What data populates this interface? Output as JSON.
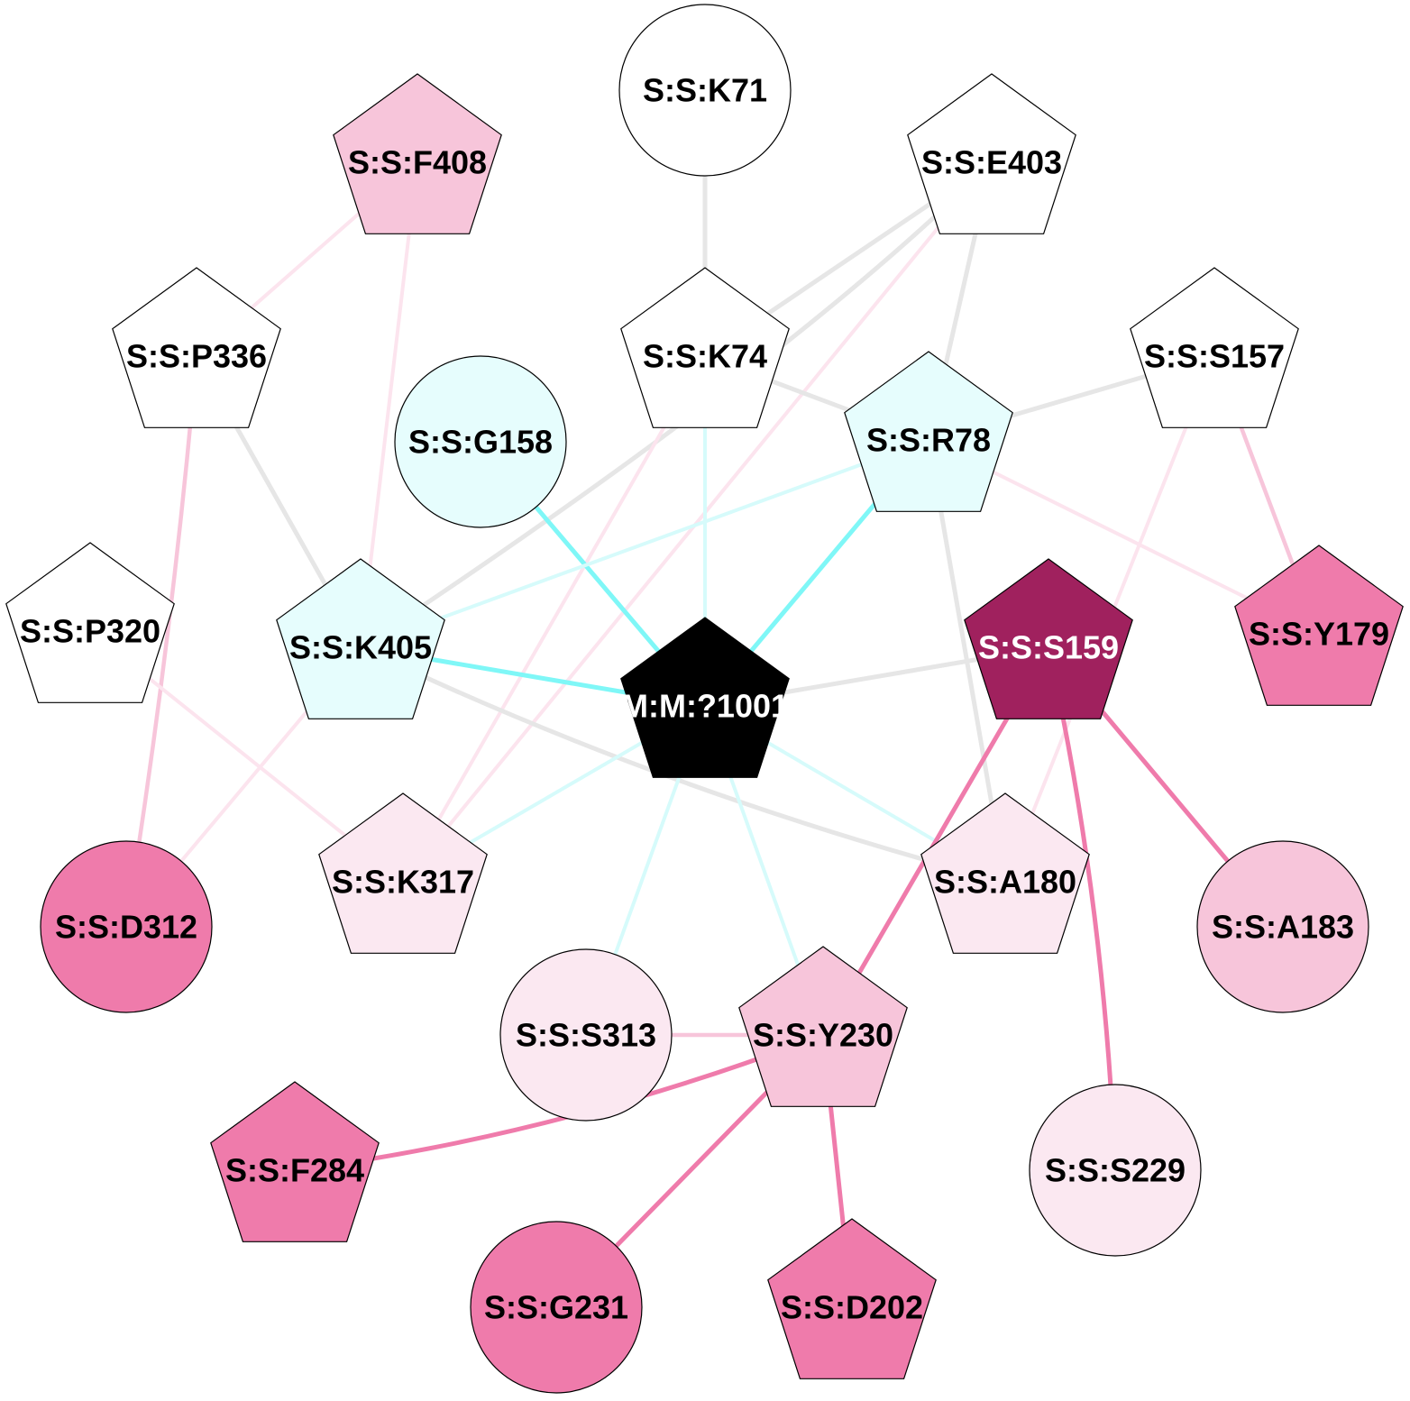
{
  "palette": {
    "gray": "#e6e6e6",
    "cyan": "#7ff7f7",
    "cyan_light": "#d6fbfb",
    "pink_faint": "#fce4ee",
    "pink_light": "#f7c5da",
    "pink_mid": "#ef7bab"
  },
  "nodes": [
    {
      "id": "K71",
      "label": "S:S:K71",
      "shape": "circle",
      "fill": "#ffffff",
      "text_color": "#000000"
    },
    {
      "id": "F408",
      "label": "S:S:F408",
      "shape": "pentagon",
      "fill": "#f7c5da",
      "text_color": "#000000"
    },
    {
      "id": "E403",
      "label": "S:S:E403",
      "shape": "pentagon",
      "fill": "#ffffff",
      "text_color": "#000000"
    },
    {
      "id": "P336",
      "label": "S:S:P336",
      "shape": "pentagon",
      "fill": "#ffffff",
      "text_color": "#000000"
    },
    {
      "id": "K74",
      "label": "S:S:K74",
      "shape": "pentagon",
      "fill": "#ffffff",
      "text_color": "#000000"
    },
    {
      "id": "S157",
      "label": "S:S:S157",
      "shape": "pentagon",
      "fill": "#ffffff",
      "text_color": "#000000"
    },
    {
      "id": "G158",
      "label": "S:S:G158",
      "shape": "circle",
      "fill": "#e6fdfd",
      "text_color": "#000000"
    },
    {
      "id": "R78",
      "label": "S:S:R78",
      "shape": "pentagon",
      "fill": "#e6fdfd",
      "text_color": "#000000"
    },
    {
      "id": "P320",
      "label": "S:S:P320",
      "shape": "pentagon",
      "fill": "#ffffff",
      "text_color": "#000000"
    },
    {
      "id": "K405",
      "label": "S:S:K405",
      "shape": "pentagon",
      "fill": "#e6fdfd",
      "text_color": "#000000"
    },
    {
      "id": "M1001",
      "label": "M:M:?1001",
      "shape": "pentagon",
      "fill": "#000000",
      "text_color": "#ffffff"
    },
    {
      "id": "S159",
      "label": "S:S:S159",
      "shape": "pentagon",
      "fill": "#a0215e",
      "text_color": "#ffffff"
    },
    {
      "id": "Y179",
      "label": "S:S:Y179",
      "shape": "pentagon",
      "fill": "#ef7bab",
      "text_color": "#000000"
    },
    {
      "id": "D312",
      "label": "S:S:D312",
      "shape": "circle",
      "fill": "#ef7bab",
      "text_color": "#000000"
    },
    {
      "id": "K317",
      "label": "S:S:K317",
      "shape": "pentagon",
      "fill": "#fbe8f1",
      "text_color": "#000000"
    },
    {
      "id": "A180",
      "label": "S:S:A180",
      "shape": "pentagon",
      "fill": "#fbe8f1",
      "text_color": "#000000"
    },
    {
      "id": "A183",
      "label": "S:S:A183",
      "shape": "circle",
      "fill": "#f7c5da",
      "text_color": "#000000"
    },
    {
      "id": "S313",
      "label": "S:S:S313",
      "shape": "circle",
      "fill": "#fbe8f1",
      "text_color": "#000000"
    },
    {
      "id": "Y230",
      "label": "S:S:Y230",
      "shape": "pentagon",
      "fill": "#f7c5da",
      "text_color": "#000000"
    },
    {
      "id": "S229",
      "label": "S:S:S229",
      "shape": "circle",
      "fill": "#fbe8f1",
      "text_color": "#000000"
    },
    {
      "id": "F284",
      "label": "S:S:F284",
      "shape": "pentagon",
      "fill": "#ef7bab",
      "text_color": "#000000"
    },
    {
      "id": "G231",
      "label": "S:S:G231",
      "shape": "circle",
      "fill": "#ef7bab",
      "text_color": "#000000"
    },
    {
      "id": "D202",
      "label": "S:S:D202",
      "shape": "pentagon",
      "fill": "#ef7bab",
      "text_color": "#000000"
    }
  ],
  "edges": [
    {
      "source": "K71",
      "target": "K74",
      "color": "gray"
    },
    {
      "source": "E403",
      "target": "K74",
      "color": "gray"
    },
    {
      "source": "E403",
      "target": "K405",
      "color": "gray"
    },
    {
      "source": "E403",
      "target": "R78",
      "color": "gray"
    },
    {
      "source": "E403",
      "target": "K317",
      "color": "pink_faint"
    },
    {
      "source": "F408",
      "target": "P336",
      "color": "pink_faint"
    },
    {
      "source": "F408",
      "target": "K405",
      "color": "pink_faint"
    },
    {
      "source": "P336",
      "target": "K405",
      "color": "gray"
    },
    {
      "source": "P336",
      "target": "D312",
      "color": "pink_light"
    },
    {
      "source": "K74",
      "target": "R78",
      "color": "gray"
    },
    {
      "source": "K74",
      "target": "M1001",
      "color": "cyan_light"
    },
    {
      "source": "K74",
      "target": "K317",
      "color": "pink_faint"
    },
    {
      "source": "S157",
      "target": "R78",
      "color": "gray"
    },
    {
      "source": "S157",
      "target": "Y179",
      "color": "pink_light"
    },
    {
      "source": "S157",
      "target": "A180",
      "color": "pink_faint"
    },
    {
      "source": "G158",
      "target": "M1001",
      "color": "cyan"
    },
    {
      "source": "R78",
      "target": "M1001",
      "color": "cyan"
    },
    {
      "source": "R78",
      "target": "K405",
      "color": "cyan_light"
    },
    {
      "source": "R78",
      "target": "Y179",
      "color": "pink_faint"
    },
    {
      "source": "R78",
      "target": "A180",
      "color": "gray"
    },
    {
      "source": "K405",
      "target": "M1001",
      "color": "cyan"
    },
    {
      "source": "K405",
      "target": "A180",
      "color": "gray"
    },
    {
      "source": "K405",
      "target": "D312",
      "color": "pink_faint"
    },
    {
      "source": "P320",
      "target": "K317",
      "color": "pink_faint"
    },
    {
      "source": "M1001",
      "target": "S159",
      "color": "gray"
    },
    {
      "source": "M1001",
      "target": "K317",
      "color": "cyan_light"
    },
    {
      "source": "M1001",
      "target": "A180",
      "color": "cyan_light"
    },
    {
      "source": "M1001",
      "target": "S313",
      "color": "cyan_light"
    },
    {
      "source": "M1001",
      "target": "Y230",
      "color": "cyan_light"
    },
    {
      "source": "S159",
      "target": "Y230",
      "color": "pink_mid"
    },
    {
      "source": "S159",
      "target": "A183",
      "color": "pink_mid"
    },
    {
      "source": "S159",
      "target": "S229",
      "color": "pink_mid"
    },
    {
      "source": "S313",
      "target": "Y230",
      "color": "pink_light"
    },
    {
      "source": "Y230",
      "target": "F284",
      "color": "pink_mid"
    },
    {
      "source": "Y230",
      "target": "G231",
      "color": "pink_mid"
    },
    {
      "source": "Y230",
      "target": "D202",
      "color": "pink_mid"
    }
  ]
}
